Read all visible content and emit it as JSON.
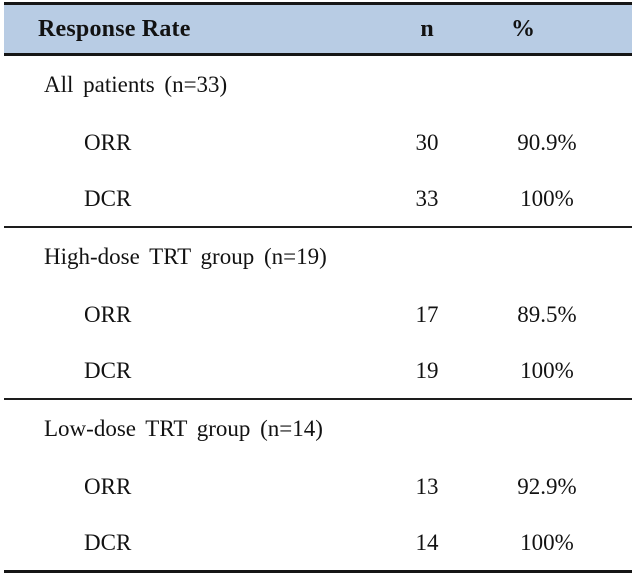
{
  "table": {
    "header": {
      "response_rate": "Response Rate",
      "n": "n",
      "percent": "%"
    },
    "header_bg": "#b8cce4",
    "border_color": "#161616",
    "sections": [
      {
        "group": "All patients (n=33)",
        "rows": [
          {
            "label": "ORR",
            "n": "30",
            "pct": "90.9%"
          },
          {
            "label": "DCR",
            "n": "33",
            "pct": "100%"
          }
        ]
      },
      {
        "group": "High-dose TRT group (n=19)",
        "rows": [
          {
            "label": "ORR",
            "n": "17",
            "pct": "89.5%"
          },
          {
            "label": "DCR",
            "n": "19",
            "pct": "100%"
          }
        ]
      },
      {
        "group": "Low-dose TRT group (n=14)",
        "rows": [
          {
            "label": "ORR",
            "n": "13",
            "pct": "92.9%"
          },
          {
            "label": "DCR",
            "n": "14",
            "pct": "100%"
          }
        ]
      }
    ]
  }
}
